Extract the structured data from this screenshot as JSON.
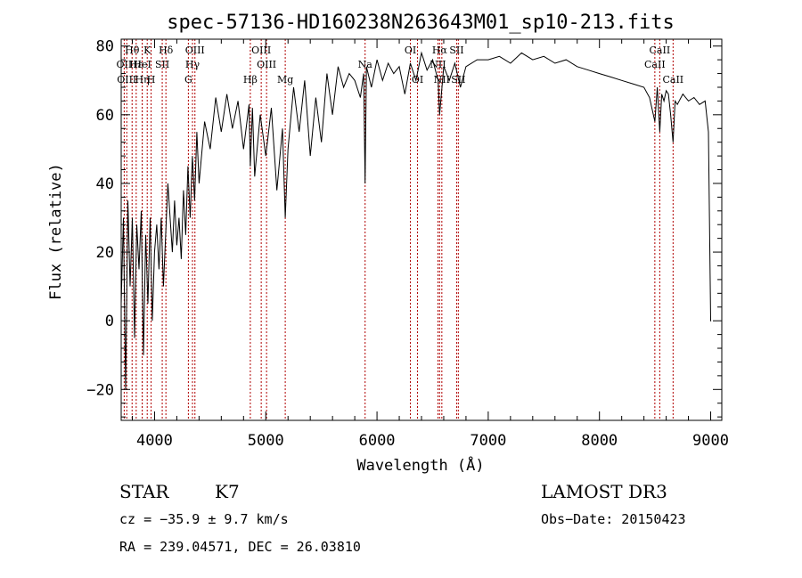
{
  "chart_data": {
    "type": "line",
    "title": "spec-57136-HD160238N263643M01_sp10-213.fits",
    "xlabel": "Wavelength (Å)",
    "ylabel": "Flux (relative)",
    "xlim": [
      3700,
      9100
    ],
    "ylim": [
      -29,
      82
    ],
    "xticks": [
      4000,
      5000,
      6000,
      7000,
      8000,
      9000
    ],
    "yticks": [
      -20,
      0,
      20,
      40,
      60,
      80
    ],
    "grid": false,
    "series": [
      {
        "name": "flux",
        "x": [
          3700,
          3720,
          3740,
          3760,
          3780,
          3800,
          3820,
          3840,
          3860,
          3880,
          3900,
          3920,
          3940,
          3960,
          3980,
          4000,
          4020,
          4040,
          4060,
          4080,
          4100,
          4120,
          4140,
          4160,
          4180,
          4200,
          4220,
          4240,
          4260,
          4280,
          4300,
          4320,
          4340,
          4360,
          4380,
          4400,
          4450,
          4500,
          4550,
          4600,
          4650,
          4700,
          4750,
          4800,
          4850,
          4861,
          4880,
          4900,
          4950,
          5000,
          5050,
          5100,
          5150,
          5175,
          5200,
          5250,
          5300,
          5350,
          5400,
          5450,
          5500,
          5550,
          5600,
          5650,
          5700,
          5750,
          5800,
          5850,
          5880,
          5893,
          5905,
          5950,
          6000,
          6050,
          6100,
          6150,
          6200,
          6250,
          6300,
          6350,
          6400,
          6450,
          6500,
          6550,
          6563,
          6600,
          6650,
          6700,
          6750,
          6800,
          6900,
          7000,
          7100,
          7200,
          7300,
          7400,
          7500,
          7600,
          7700,
          7800,
          7900,
          8000,
          8100,
          8200,
          8300,
          8400,
          8450,
          8498,
          8520,
          8542,
          8560,
          8580,
          8600,
          8620,
          8640,
          8662,
          8680,
          8700,
          8750,
          8800,
          8850,
          8900,
          8950,
          8980,
          9000,
          9005
        ],
        "y": [
          5,
          30,
          -20,
          35,
          10,
          30,
          -5,
          28,
          15,
          32,
          -10,
          25,
          5,
          30,
          0,
          20,
          28,
          15,
          30,
          10,
          25,
          40,
          30,
          20,
          35,
          22,
          30,
          18,
          38,
          25,
          45,
          30,
          48,
          35,
          55,
          40,
          58,
          50,
          65,
          55,
          66,
          56,
          64,
          50,
          63,
          45,
          62,
          42,
          60,
          48,
          62,
          38,
          56,
          30,
          50,
          68,
          55,
          70,
          48,
          65,
          52,
          72,
          60,
          74,
          68,
          72,
          70,
          65,
          72,
          40,
          74,
          68,
          76,
          70,
          75,
          72,
          74,
          66,
          75,
          70,
          78,
          73,
          76,
          70,
          60,
          74,
          70,
          75,
          68,
          74,
          76,
          76,
          77,
          75,
          78,
          76,
          77,
          75,
          76,
          74,
          73,
          72,
          71,
          70,
          69,
          68,
          65,
          58,
          68,
          55,
          66,
          64,
          67,
          66,
          60,
          52,
          64,
          63,
          66,
          64,
          65,
          63,
          64,
          55,
          0,
          0
        ]
      }
    ],
    "line_marks": [
      {
        "label": "Hθ",
        "x": 3798,
        "row": 1
      },
      {
        "label": "OII",
        "x": 3727,
        "row": 2
      },
      {
        "label": "OIII",
        "x": 3750,
        "row": 3
      },
      {
        "label": "Hε",
        "x": 3835,
        "row": 2
      },
      {
        "label": "Hη",
        "x": 3889,
        "row": 3
      },
      {
        "label": "K",
        "x": 3934,
        "row": 1
      },
      {
        "label": "HeI",
        "x": 3889,
        "row": 2
      },
      {
        "label": "SII",
        "x": 4069,
        "row": 2
      },
      {
        "label": "Hδ",
        "x": 4102,
        "row": 1
      },
      {
        "label": "H",
        "x": 3969,
        "row": 3
      },
      {
        "label": "OIII",
        "x": 4363,
        "row": 1
      },
      {
        "label": "Hγ",
        "x": 4341,
        "row": 2
      },
      {
        "label": "G",
        "x": 4304,
        "row": 3
      },
      {
        "label": "Hβ",
        "x": 4861,
        "row": 3
      },
      {
        "label": "OIII",
        "x": 4959,
        "row": 1
      },
      {
        "label": "OIII",
        "x": 5007,
        "row": 2
      },
      {
        "label": "Mg",
        "x": 5175,
        "row": 3
      },
      {
        "label": "Na",
        "x": 5893,
        "row": 2
      },
      {
        "label": "OI",
        "x": 6300,
        "row": 1
      },
      {
        "label": "OI",
        "x": 6364,
        "row": 3
      },
      {
        "label": "Hα",
        "x": 6563,
        "row": 1
      },
      {
        "label": "SII",
        "x": 6716,
        "row": 1
      },
      {
        "label": "NII",
        "x": 6548,
        "row": 2
      },
      {
        "label": "NII",
        "x": 6583,
        "row": 3
      },
      {
        "label": "SII",
        "x": 6731,
        "row": 3
      },
      {
        "label": "CaII",
        "x": 8542,
        "row": 1
      },
      {
        "label": "CaII",
        "x": 8498,
        "row": 2
      },
      {
        "label": "CaII",
        "x": 8662,
        "row": 3
      }
    ]
  },
  "info": {
    "class": "STAR",
    "subclass": "K7",
    "survey": "LAMOST DR3",
    "cz": "cz = −35.9 ± 9.7 km/s",
    "obs_date": "Obs−Date: 20150423",
    "coords": "RA = 239.04571, DEC =  26.03810"
  }
}
